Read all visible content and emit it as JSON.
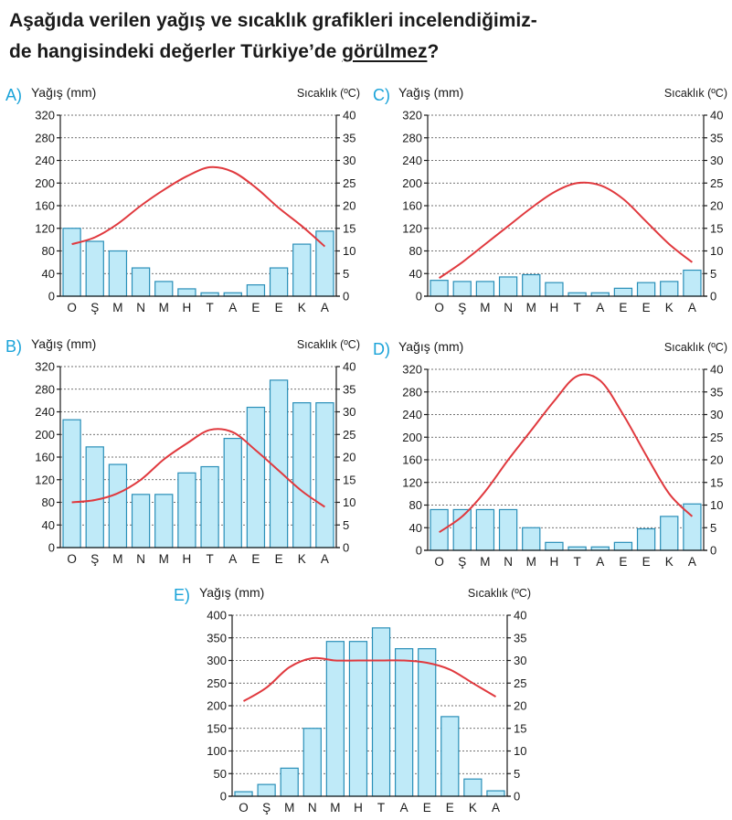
{
  "question": {
    "line1": "Aşağıda verilen yağış ve sıcaklık grafikleri incelendiğimiz-",
    "line2_pre": "de hangisindeki değerler Türkiye’de ",
    "line2_underlined": "görülmez",
    "line2_post": "?"
  },
  "chart_data": [
    {
      "option": "A)",
      "type": "bar+line",
      "ylabel_left": "Yağış (mm)",
      "ylabel_right": "Sıcaklık (ºC)",
      "ylim_left": [
        0,
        320
      ],
      "ylim_right": [
        0,
        40
      ],
      "left_ticks": [
        0,
        40,
        80,
        120,
        160,
        200,
        240,
        280,
        320
      ],
      "right_ticks": [
        0,
        5,
        10,
        15,
        20,
        25,
        30,
        35,
        40
      ],
      "categories": [
        "O",
        "Ş",
        "M",
        "N",
        "M",
        "H",
        "T",
        "A",
        "E",
        "E",
        "K",
        "A"
      ],
      "precipitation": [
        120,
        97,
        80,
        50,
        26,
        13,
        6,
        6,
        20,
        50,
        92,
        115
      ],
      "temperature": [
        11.5,
        13,
        16,
        20,
        23.5,
        26.5,
        28.5,
        27.5,
        24,
        19.5,
        15.5,
        11
      ],
      "grid": true
    },
    {
      "option": "C)",
      "type": "bar+line",
      "ylabel_left": "Yağış (mm)",
      "ylabel_right": "Sıcaklık (ºC)",
      "ylim_left": [
        0,
        320
      ],
      "ylim_right": [
        0,
        40
      ],
      "left_ticks": [
        0,
        40,
        80,
        120,
        160,
        200,
        240,
        280,
        320
      ],
      "right_ticks": [
        0,
        5,
        10,
        15,
        20,
        25,
        30,
        35,
        40
      ],
      "categories": [
        "O",
        "Ş",
        "M",
        "N",
        "M",
        "H",
        "T",
        "A",
        "E",
        "E",
        "K",
        "A"
      ],
      "precipitation": [
        28,
        26,
        26,
        34,
        38,
        24,
        6,
        6,
        14,
        24,
        26,
        46
      ],
      "temperature": [
        4,
        7.5,
        11.5,
        15.5,
        19.5,
        23,
        25,
        24.5,
        21.5,
        16.5,
        11.5,
        7.5
      ],
      "grid": true
    },
    {
      "option": "B)",
      "type": "bar+line",
      "ylabel_left": "Yağış (mm)",
      "ylabel_right": "Sıcaklık (ºC)",
      "ylim_left": [
        0,
        320
      ],
      "ylim_right": [
        0,
        40
      ],
      "left_ticks": [
        0,
        40,
        80,
        120,
        160,
        200,
        240,
        280,
        320
      ],
      "right_ticks": [
        0,
        5,
        10,
        15,
        20,
        25,
        30,
        35,
        40
      ],
      "categories": [
        "O",
        "Ş",
        "M",
        "N",
        "M",
        "H",
        "T",
        "A",
        "E",
        "E",
        "K",
        "A"
      ],
      "precipitation": [
        226,
        178,
        147,
        94,
        94,
        132,
        143,
        193,
        248,
        296,
        256,
        256
      ],
      "temperature": [
        10,
        10.5,
        12,
        15,
        19.5,
        23,
        26,
        25.5,
        21.5,
        17,
        12.5,
        9
      ],
      "grid": true
    },
    {
      "option": "D)",
      "type": "bar+line",
      "ylabel_left": "Yağış (mm)",
      "ylabel_right": "Sıcaklık (ºC)",
      "ylim_left": [
        0,
        320
      ],
      "ylim_right": [
        0,
        40
      ],
      "left_ticks": [
        0,
        40,
        80,
        120,
        160,
        200,
        240,
        280,
        320
      ],
      "right_ticks": [
        0,
        5,
        10,
        15,
        20,
        25,
        30,
        35,
        40
      ],
      "categories": [
        "O",
        "Ş",
        "M",
        "N",
        "M",
        "H",
        "T",
        "A",
        "E",
        "E",
        "K",
        "A"
      ],
      "precipitation": [
        72,
        72,
        72,
        72,
        40,
        14,
        6,
        6,
        14,
        38,
        60,
        82
      ],
      "temperature": [
        4,
        7.5,
        13,
        20,
        26.5,
        33,
        38.5,
        37.5,
        30,
        21,
        12.5,
        7.5
      ],
      "grid": true
    },
    {
      "option": "E)",
      "type": "bar+line",
      "ylabel_left": "Yağış (mm)",
      "ylabel_right": "Sıcaklık (ºC)",
      "ylim_left": [
        0,
        400
      ],
      "ylim_right": [
        0,
        40
      ],
      "left_ticks": [
        0,
        50,
        100,
        150,
        200,
        250,
        300,
        350,
        400
      ],
      "right_ticks": [
        0,
        5,
        10,
        15,
        20,
        25,
        30,
        35,
        40
      ],
      "categories": [
        "O",
        "Ş",
        "M",
        "N",
        "M",
        "H",
        "T",
        "A",
        "E",
        "E",
        "K",
        "A"
      ],
      "precipitation": [
        10,
        26,
        62,
        150,
        342,
        342,
        372,
        326,
        326,
        176,
        38,
        12
      ],
      "temperature": [
        21,
        24,
        28.5,
        30.5,
        30,
        30,
        30,
        30,
        29.5,
        28,
        25,
        22
      ],
      "grid": true
    }
  ]
}
